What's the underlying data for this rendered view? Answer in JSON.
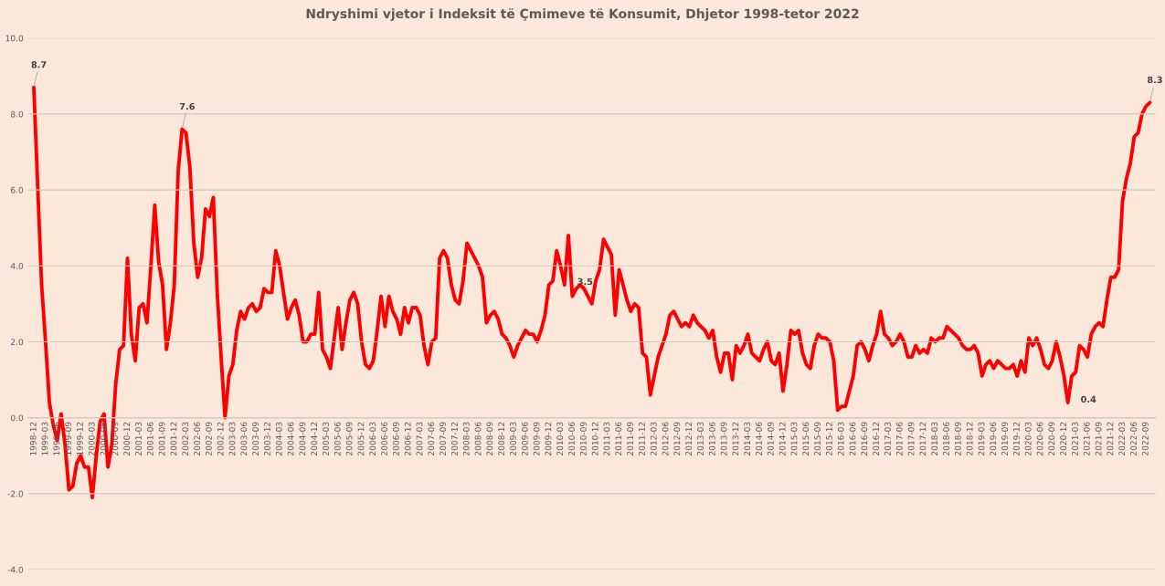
{
  "chart_data": {
    "type": "line",
    "title": "Ndryshimi vjetor i Indeksit të Çmimeve të Konsumit, Dhjetor 1998-tetor 2022",
    "categories": [
      "1998-12",
      null,
      null,
      "1999-03",
      null,
      null,
      "1999-06",
      null,
      null,
      "1999-09",
      null,
      null,
      "1999-12",
      null,
      null,
      "2000-03",
      null,
      null,
      "2000-06",
      null,
      null,
      "2000-09",
      null,
      null,
      "2000-12",
      null,
      null,
      "2001-03",
      null,
      null,
      "2001-06",
      null,
      null,
      "2001-09",
      null,
      null,
      "2001-12",
      null,
      null,
      "2002-03",
      null,
      null,
      "2002-06",
      null,
      null,
      "2002-09",
      null,
      null,
      "2002-12",
      null,
      null,
      "2003-03",
      null,
      null,
      "2003-06",
      null,
      null,
      "2003-09",
      null,
      null,
      "2003-12",
      null,
      null,
      "2004-03",
      null,
      null,
      "2004-06",
      null,
      null,
      "2004-09",
      null,
      null,
      "2004-12",
      null,
      null,
      "2005-03",
      null,
      null,
      "2005-06",
      null,
      null,
      "2005-09",
      null,
      null,
      "2005-12",
      null,
      null,
      "2006-03",
      null,
      null,
      "2006-06",
      null,
      null,
      "2006-09",
      null,
      null,
      "2006-12",
      null,
      null,
      "2007-03",
      null,
      null,
      "2007-06",
      null,
      null,
      "2007-09",
      null,
      null,
      "2007-12",
      null,
      null,
      "2008-03",
      null,
      null,
      "2008-06",
      null,
      null,
      "2008-09",
      null,
      null,
      "2008-12",
      null,
      null,
      "2009-03",
      null,
      null,
      "2009-06",
      null,
      null,
      "2009-09",
      null,
      null,
      "2009-12",
      null,
      null,
      "2010-03",
      null,
      null,
      "2010-06",
      null,
      null,
      "2010-09",
      null,
      null,
      "2010-12",
      null,
      null,
      "2011-03",
      null,
      null,
      "2011-06",
      null,
      null,
      "2011-09",
      null,
      null,
      "2011-12",
      null,
      null,
      "2012-03",
      null,
      null,
      "2012-06",
      null,
      null,
      "2012-09",
      null,
      null,
      "2012-12",
      null,
      null,
      "2013-03",
      null,
      null,
      "2013-06",
      null,
      null,
      "2013-09",
      null,
      null,
      "2013-12",
      null,
      null,
      "2014-03",
      null,
      null,
      "2014-06",
      null,
      null,
      "2014-09",
      null,
      null,
      "2014-12",
      null,
      null,
      "2015-03",
      null,
      null,
      "2015-06",
      null,
      null,
      "2015-09",
      null,
      null,
      "2015-12",
      null,
      null,
      "2016-03",
      null,
      null,
      "2016-06",
      null,
      null,
      "2016-09",
      null,
      null,
      "2016-12",
      null,
      null,
      "2017-03",
      null,
      null,
      "2017-06",
      null,
      null,
      "2017-09",
      null,
      null,
      "2017-12",
      null,
      null,
      "2018-03",
      null,
      null,
      "2018-06",
      null,
      null,
      "2018-09",
      null,
      null,
      "2018-12",
      null,
      null,
      "2019-03",
      null,
      null,
      "2019-06",
      null,
      null,
      "2019-09",
      null,
      null,
      "2019-12",
      null,
      null,
      "2020-03",
      null,
      null,
      "2020-06",
      null,
      null,
      "2020-09",
      null,
      null,
      "2020-12",
      null,
      null,
      "2021-03",
      null,
      null,
      "2021-06",
      null,
      null,
      "2021-09",
      null,
      null,
      "2021-12",
      null,
      null,
      "2022-03",
      null,
      null,
      "2022-06",
      null,
      null,
      "2022-09",
      null
    ],
    "values": [
      8.7,
      6.1,
      3.5,
      2.0,
      0.4,
      -0.2,
      -0.6,
      0.1,
      -0.7,
      -1.9,
      -1.8,
      -1.2,
      -1.0,
      -1.3,
      -1.3,
      -2.1,
      -1.0,
      -0.1,
      0.1,
      -1.3,
      -0.7,
      0.9,
      1.8,
      1.9,
      4.2,
      2.2,
      1.5,
      2.9,
      3.0,
      2.5,
      4.0,
      5.6,
      4.1,
      3.5,
      1.8,
      2.5,
      3.5,
      6.5,
      7.6,
      7.5,
      6.6,
      4.6,
      3.7,
      4.2,
      5.5,
      5.3,
      5.8,
      3.3,
      1.6,
      0.0,
      1.1,
      1.4,
      2.3,
      2.8,
      2.6,
      2.9,
      3.0,
      2.8,
      2.9,
      3.4,
      3.3,
      3.3,
      4.4,
      4.0,
      3.3,
      2.6,
      2.9,
      3.1,
      2.7,
      2.0,
      2.0,
      2.2,
      2.2,
      3.3,
      1.8,
      1.6,
      1.3,
      2.1,
      2.9,
      1.8,
      2.5,
      3.1,
      3.3,
      3.0,
      2.0,
      1.4,
      1.3,
      1.5,
      2.3,
      3.2,
      2.4,
      3.2,
      2.8,
      2.6,
      2.2,
      2.9,
      2.5,
      2.9,
      2.9,
      2.7,
      1.9,
      1.4,
      2.0,
      2.1,
      4.2,
      4.4,
      4.2,
      3.5,
      3.1,
      3.0,
      3.6,
      4.6,
      4.4,
      4.2,
      4.0,
      3.7,
      2.5,
      2.7,
      2.8,
      2.6,
      2.2,
      2.1,
      1.9,
      1.6,
      1.9,
      2.1,
      2.3,
      2.2,
      2.2,
      2.0,
      2.3,
      2.7,
      3.5,
      3.6,
      4.4,
      4.0,
      3.5,
      4.8,
      3.2,
      3.4,
      3.5,
      3.4,
      3.2,
      3.0,
      3.6,
      3.9,
      4.7,
      4.5,
      4.3,
      2.7,
      3.9,
      3.5,
      3.1,
      2.8,
      3.0,
      2.9,
      1.7,
      1.6,
      0.6,
      1.1,
      1.6,
      1.9,
      2.2,
      2.7,
      2.8,
      2.6,
      2.4,
      2.5,
      2.4,
      2.7,
      2.5,
      2.4,
      2.3,
      2.1,
      2.3,
      1.6,
      1.2,
      1.7,
      1.7,
      1.0,
      1.9,
      1.7,
      1.9,
      2.2,
      1.7,
      1.6,
      1.5,
      1.8,
      2.0,
      1.5,
      1.4,
      1.7,
      0.7,
      1.4,
      2.3,
      2.2,
      2.3,
      1.7,
      1.4,
      1.3,
      1.9,
      2.2,
      2.1,
      2.1,
      2.0,
      1.5,
      0.2,
      0.3,
      0.3,
      0.7,
      1.1,
      1.9,
      2.0,
      1.8,
      1.5,
      1.9,
      2.2,
      2.8,
      2.2,
      2.1,
      1.9,
      2.0,
      2.2,
      2.0,
      1.6,
      1.6,
      1.9,
      1.7,
      1.8,
      1.7,
      2.1,
      2.0,
      2.1,
      2.1,
      2.4,
      2.3,
      2.2,
      2.1,
      1.9,
      1.8,
      1.8,
      1.9,
      1.7,
      1.1,
      1.4,
      1.5,
      1.3,
      1.5,
      1.4,
      1.3,
      1.3,
      1.4,
      1.1,
      1.5,
      1.2,
      2.1,
      1.9,
      2.1,
      1.8,
      1.4,
      1.3,
      1.5,
      2.0,
      1.6,
      1.1,
      0.4,
      1.1,
      1.2,
      1.9,
      1.8,
      1.6,
      2.2,
      2.4,
      2.5,
      2.4,
      3.1,
      3.7,
      3.7,
      3.9,
      5.7,
      6.3,
      6.7,
      7.4,
      7.5,
      8.0,
      8.2,
      8.3
    ],
    "value_labels": [
      "8.7",
      null,
      null,
      null,
      null,
      null,
      null,
      null,
      null,
      null,
      null,
      null,
      null,
      null,
      null,
      null,
      null,
      null,
      null,
      null,
      null,
      null,
      null,
      null,
      null,
      null,
      null,
      null,
      null,
      null,
      null,
      null,
      null,
      null,
      null,
      null,
      null,
      null,
      "7.6",
      null,
      null,
      null,
      null,
      null,
      null,
      null,
      null,
      null,
      null,
      null,
      null,
      null,
      null,
      null,
      null,
      null,
      null,
      null,
      null,
      null,
      null,
      null,
      null,
      null,
      null,
      null,
      null,
      null,
      null,
      null,
      null,
      null,
      null,
      null,
      null,
      null,
      null,
      null,
      null,
      null,
      null,
      null,
      null,
      null,
      null,
      null,
      null,
      null,
      null,
      null,
      null,
      null,
      null,
      null,
      null,
      null,
      null,
      null,
      null,
      null,
      null,
      null,
      null,
      null,
      null,
      null,
      null,
      null,
      null,
      null,
      null,
      null,
      null,
      null,
      null,
      null,
      null,
      null,
      null,
      null,
      null,
      null,
      null,
      null,
      null,
      null,
      null,
      null,
      null,
      null,
      null,
      null,
      null,
      null,
      null,
      null,
      "3.5",
      null,
      null,
      null,
      null,
      null,
      null,
      null,
      null,
      null,
      null,
      null,
      null,
      null,
      null,
      null,
      null,
      null,
      null,
      null,
      null,
      null,
      null,
      null,
      null,
      null,
      null,
      null,
      null,
      null,
      null,
      null,
      null,
      null,
      null,
      null,
      null,
      null,
      null,
      null,
      null,
      null,
      null,
      null,
      null,
      null,
      null,
      null,
      null,
      null,
      null,
      null,
      null,
      null,
      null,
      null,
      null,
      null,
      null,
      null,
      null,
      null,
      null,
      null,
      null,
      null,
      null,
      null,
      null,
      null,
      null,
      null,
      null,
      null,
      null,
      null,
      null,
      null,
      null,
      null,
      null,
      null,
      null,
      null,
      null,
      null,
      null,
      null,
      null,
      null,
      null,
      null,
      null,
      null,
      null,
      null,
      null,
      null,
      null,
      null,
      null,
      null,
      null,
      null,
      null,
      null,
      null,
      null,
      null,
      null,
      null,
      null,
      null,
      null,
      null,
      null,
      null,
      null,
      null,
      null,
      null,
      null,
      null,
      null,
      null,
      null,
      null,
      null,
      null,
      "0.4",
      null,
      null,
      null,
      null,
      null,
      null,
      null,
      null,
      null,
      null,
      null,
      null,
      null,
      null,
      null,
      null,
      null,
      null,
      null,
      null,
      "8.3"
    ],
    "color": "#ff0000",
    "ylim": [
      -4,
      10
    ],
    "yticks": [
      {
        "value": -4,
        "label": "-4.0"
      },
      {
        "value": -2,
        "label": "-2.0"
      },
      {
        "value": 0,
        "label": "0.0"
      },
      {
        "value": 2,
        "label": "2.0"
      },
      {
        "value": 4,
        "label": "4.0"
      },
      {
        "value": 6,
        "label": "6.0"
      },
      {
        "value": 8,
        "label": "8.0"
      },
      {
        "value": 10,
        "label": "10.0"
      }
    ],
    "grid": "y"
  }
}
